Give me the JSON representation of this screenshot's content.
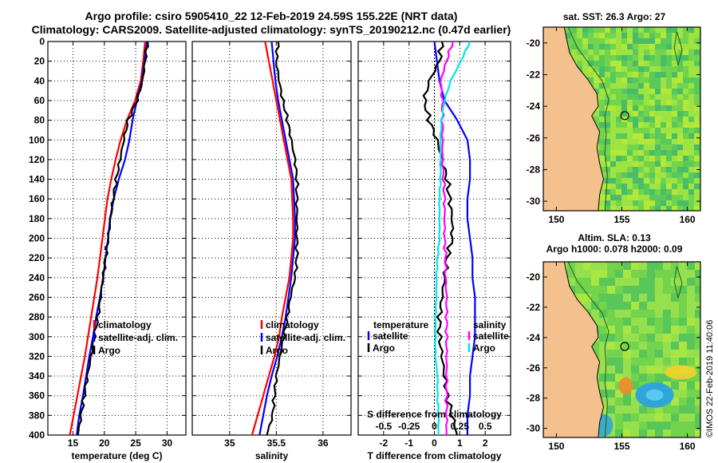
{
  "header": {
    "title1": "Argo profile: csiro 5905410_22 12-Feb-2019 24.59S 155.22E (NRT data)",
    "title2": "Climatology: CARS2009. Satellite-adjusted climatology: synTS_20190212.nc (0.47d earlier)"
  },
  "maps": {
    "sst_title": "sat. SST: 26.3 Argo: 27",
    "sla_title1": "Altim. SLA: 0.13",
    "sla_title2": "Argo h1000: 0.078 h2000: 0.09",
    "lat_ticks": [
      "-20",
      "-22",
      "-24",
      "-26",
      "-28",
      "-30"
    ],
    "lon_ticks": [
      "150",
      "155",
      "160"
    ],
    "land_color": "#f4c08e",
    "argo_lon": 155.22,
    "argo_lat": -24.59
  },
  "watermark": "©IMOS 22-Feb-2019 11:40:06",
  "colors": {
    "climatology": "#ff0000",
    "satellite": "#0000ff",
    "argo": "#000000",
    "s_satellite": "#ff00ff",
    "t_satellite": "#00e5e5"
  },
  "chart_data": [
    {
      "type": "line",
      "name": "temperature",
      "xlabel": "temperature (deg C)",
      "ylabel": "",
      "xlim": [
        11,
        33
      ],
      "ylim": [
        400,
        0
      ],
      "xticks": [
        "15",
        "20",
        "25",
        "30"
      ],
      "yticks": [
        "0",
        "20",
        "40",
        "60",
        "80",
        "100",
        "120",
        "140",
        "160",
        "180",
        "200",
        "220",
        "240",
        "260",
        "280",
        "300",
        "320",
        "340",
        "360",
        "380",
        "400"
      ],
      "depth": [
        0,
        20,
        40,
        60,
        80,
        100,
        120,
        140,
        160,
        180,
        200,
        220,
        240,
        260,
        280,
        300,
        320,
        340,
        360,
        380,
        400
      ],
      "series": [
        {
          "name": "climatology",
          "values": [
            26.5,
            26.2,
            25.8,
            24.9,
            23.6,
            22.6,
            21.8,
            21.1,
            20.5,
            20.1,
            19.7,
            19.3,
            18.9,
            18.4,
            17.9,
            17.4,
            16.9,
            16.3,
            15.7,
            15.1,
            14.5
          ]
        },
        {
          "name": "satellite-adj. clim.",
          "values": [
            26.8,
            26.4,
            26.0,
            25.2,
            24.5,
            24.0,
            23.3,
            22.3,
            21.5,
            20.9,
            20.6,
            20.2,
            19.8,
            19.3,
            18.7,
            18.2,
            17.6,
            17.1,
            16.6,
            16.0,
            15.6
          ]
        },
        {
          "name": "Argo",
          "values": [
            26.9,
            26.5,
            26.1,
            25.2,
            23.8,
            23.1,
            22.5,
            21.9,
            21.4,
            21.0,
            20.6,
            20.2,
            19.8,
            19.4,
            19.0,
            18.4,
            17.9,
            17.3,
            16.8,
            16.3,
            15.8
          ]
        }
      ],
      "legend": [
        "climatology",
        "satellite-adj. clim.",
        "Argo"
      ]
    },
    {
      "type": "line",
      "name": "salinity",
      "xlabel": "salinity",
      "ylabel": "",
      "xlim": [
        34.6,
        36.3
      ],
      "ylim": [
        400,
        0
      ],
      "xticks": [
        "35",
        "35.5",
        "36"
      ],
      "depth": [
        0,
        20,
        40,
        60,
        80,
        100,
        120,
        140,
        160,
        180,
        200,
        220,
        240,
        260,
        280,
        300,
        320,
        340,
        360,
        380,
        400
      ],
      "series": [
        {
          "name": "climatology",
          "values": [
            35.38,
            35.42,
            35.46,
            35.5,
            35.54,
            35.58,
            35.62,
            35.66,
            35.67,
            35.68,
            35.68,
            35.66,
            35.64,
            35.6,
            35.56,
            35.53,
            35.48,
            35.42,
            35.36,
            35.3,
            35.24
          ]
        },
        {
          "name": "satellite-adj. clim.",
          "values": [
            35.45,
            35.47,
            35.49,
            35.52,
            35.56,
            35.6,
            35.64,
            35.68,
            35.69,
            35.7,
            35.7,
            35.68,
            35.66,
            35.63,
            35.6,
            35.56,
            35.51,
            35.45,
            35.4,
            35.36,
            35.32
          ]
        },
        {
          "name": "Argo",
          "values": [
            35.52,
            35.5,
            35.53,
            35.57,
            35.62,
            35.66,
            35.7,
            35.72,
            35.72,
            35.72,
            35.72,
            35.72,
            35.7,
            35.65,
            35.62,
            35.58,
            35.54,
            35.5,
            35.48,
            35.46,
            35.4
          ]
        }
      ],
      "legend": [
        "climatology",
        "satellite-adj. clim.",
        "Argo"
      ]
    },
    {
      "type": "line",
      "name": "difference",
      "xlabel": "T difference from climatology",
      "xlabel_top": "S difference from climatology",
      "ylabel": "",
      "xlim": [
        -3,
        3
      ],
      "x2lim": [
        -0.75,
        0.75
      ],
      "ylim": [
        400,
        0
      ],
      "xticks": [
        "-2",
        "-1",
        "0",
        "1",
        "2"
      ],
      "x2ticks": [
        "-0.5",
        "-0.25",
        "0",
        "0.25",
        "0.5"
      ],
      "depth": [
        0,
        20,
        40,
        60,
        80,
        100,
        120,
        140,
        160,
        180,
        200,
        220,
        240,
        260,
        280,
        300,
        320,
        340,
        360,
        380,
        400
      ],
      "series": [
        {
          "name": "temperature satellite",
          "values": [
            0.0,
            0.1,
            0.2,
            0.4,
            0.9,
            1.3,
            1.4,
            1.4,
            1.3,
            1.3,
            1.4,
            1.5,
            1.5,
            1.6,
            1.6,
            1.6,
            1.5,
            1.4,
            1.4,
            1.3,
            1.3
          ]
        },
        {
          "name": "temperature Argo",
          "values": [
            0.3,
            0.2,
            -0.2,
            -0.4,
            -0.2,
            0.1,
            0.3,
            0.5,
            0.6,
            0.7,
            0.7,
            0.5,
            0.4,
            0.3,
            0.2,
            0.2,
            0.3,
            0.4,
            0.5,
            0.7,
            0.9
          ]
        },
        {
          "name": "salinity satellite",
          "values": [
            0.18,
            0.12,
            0.06,
            0.08,
            0.08,
            0.08,
            0.08,
            0.09,
            0.1,
            0.1,
            0.1,
            0.11,
            0.11,
            0.12,
            0.12,
            0.12,
            0.12,
            0.12,
            0.12,
            0.12,
            0.12
          ]
        },
        {
          "name": "salinity Argo",
          "values": [
            0.35,
            0.26,
            0.16,
            0.1,
            0.07,
            0.06,
            0.06,
            0.06,
            0.05,
            0.05,
            0.05,
            0.03,
            0.02,
            0.02,
            0.01,
            0.01,
            0.01,
            0.03,
            0.03,
            0.04,
            0.04
          ]
        }
      ],
      "legend_left_title": "temperature",
      "legend_right_title": "salinity",
      "legend_left": [
        "satellite",
        "Argo"
      ],
      "legend_right": [
        "satellite",
        "Argo"
      ]
    }
  ]
}
